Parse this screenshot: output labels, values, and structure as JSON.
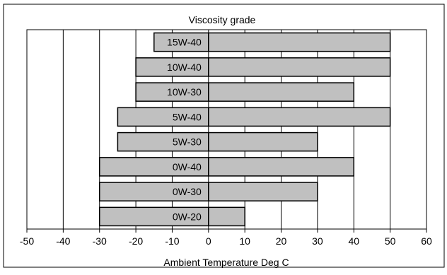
{
  "chart_data": {
    "type": "bar",
    "orientation": "horizontal",
    "stacked": "floating-range",
    "title": "Viscosity grade",
    "xlabel": "Ambient Temperature Deg C",
    "ylabel": "",
    "xlim": [
      -50,
      60
    ],
    "xticks": [
      -50,
      -40,
      -30,
      -20,
      -10,
      0,
      10,
      20,
      30,
      40,
      50,
      60
    ],
    "grid": "vertical",
    "bar_color": "#c0c0c0",
    "categories": [
      "15W-40",
      "10W-40",
      "10W-30",
      "5W-40",
      "5W-30",
      "0W-40",
      "0W-30",
      "0W-20"
    ],
    "ranges": [
      {
        "label": "15W-40",
        "min": -15,
        "max": 50
      },
      {
        "label": "10W-40",
        "min": -20,
        "max": 50
      },
      {
        "label": "10W-30",
        "min": -20,
        "max": 40
      },
      {
        "label": "5W-40",
        "min": -25,
        "max": 50
      },
      {
        "label": "5W-30",
        "min": -25,
        "max": 30
      },
      {
        "label": "0W-40",
        "min": -30,
        "max": 40
      },
      {
        "label": "0W-30",
        "min": -30,
        "max": 30
      },
      {
        "label": "0W-20",
        "min": -30,
        "max": 10
      }
    ]
  }
}
